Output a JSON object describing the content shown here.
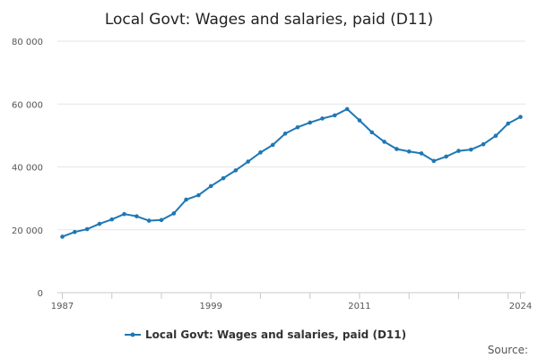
{
  "chart_data": {
    "type": "line",
    "title": "Local Govt: Wages and salaries, paid (D11)",
    "xlabel": "",
    "ylabel": "",
    "ylim": [
      0,
      80000
    ],
    "xlim": [
      1987,
      2024
    ],
    "y_ticks": [
      0,
      20000,
      40000,
      60000,
      80000
    ],
    "y_tick_labels": [
      "0",
      "20 000",
      "40 000",
      "60 000",
      "80 000"
    ],
    "x_tick_labels": [
      "1987",
      "1999",
      "2011",
      "2024"
    ],
    "x_tick_values": [
      1987,
      1999,
      2011,
      2024
    ],
    "grid": true,
    "legend_position": "bottom",
    "series": [
      {
        "name": "Local Govt: Wages and salaries, paid (D11)",
        "color": "#1f77b4",
        "x": [
          1987,
          1988,
          1989,
          1990,
          1991,
          1992,
          1993,
          1994,
          1995,
          1996,
          1997,
          1998,
          1999,
          2000,
          2001,
          2002,
          2003,
          2004,
          2005,
          2006,
          2007,
          2008,
          2009,
          2010,
          2011,
          2012,
          2013,
          2014,
          2015,
          2016,
          2017,
          2018,
          2019,
          2020,
          2021,
          2022,
          2023,
          2024
        ],
        "values": [
          17800,
          19300,
          20200,
          21900,
          23300,
          25000,
          24300,
          22900,
          23100,
          25200,
          29600,
          31000,
          33900,
          36400,
          38900,
          41700,
          44600,
          47000,
          50600,
          52600,
          54100,
          55400,
          56400,
          58400,
          54800,
          51000,
          48000,
          45700,
          44900,
          44300,
          41900,
          43300,
          45100,
          45500,
          47200,
          49900,
          53800,
          55900
        ]
      }
    ]
  },
  "source": {
    "label": "Source:"
  }
}
